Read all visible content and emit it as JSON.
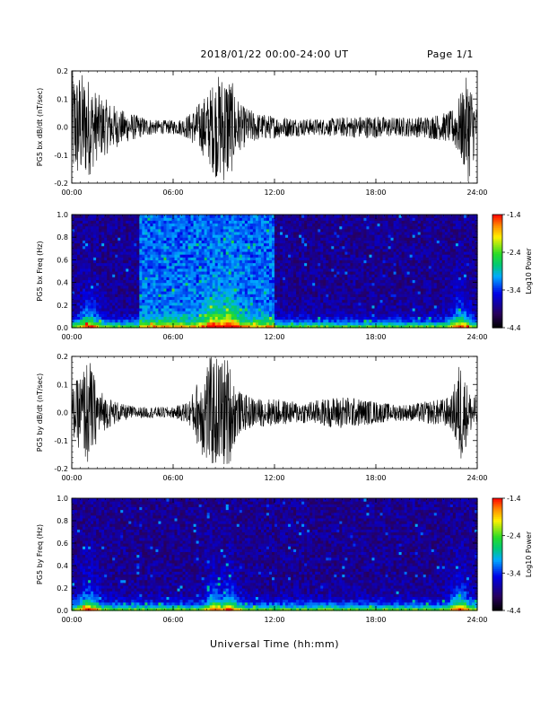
{
  "header": {
    "title": "2018/01/22  00:00-24:00 UT",
    "page": "Page 1/1"
  },
  "xaxis_title": "Universal Time (hh:mm)",
  "chart_data": [
    {
      "type": "line",
      "ylabel": "PG5 bx dB/dt (nT/sec)",
      "xlim": [
        0,
        24
      ],
      "ylim": [
        -0.2,
        0.2
      ],
      "xticks": [
        "00:00",
        "06:00",
        "12:00",
        "18:00",
        "24:00"
      ],
      "yticks": [
        "0.2",
        "0.1",
        "0.0",
        "-0.1",
        "-0.2"
      ],
      "x": [
        0,
        0.5,
        1,
        1.5,
        2,
        3,
        4,
        5,
        6,
        6.5,
        7,
        8,
        8.5,
        9,
        9.3,
        9.6,
        10,
        11,
        12,
        13,
        14,
        15,
        16,
        17,
        18,
        19,
        20,
        21,
        22,
        22.5,
        23,
        23.5,
        24
      ],
      "amplitude": [
        0.2,
        0.2,
        0.18,
        0.12,
        0.1,
        0.06,
        0.04,
        0.025,
        0.025,
        0.03,
        0.05,
        0.12,
        0.18,
        0.2,
        0.2,
        0.14,
        0.08,
        0.05,
        0.04,
        0.035,
        0.03,
        0.03,
        0.035,
        0.04,
        0.04,
        0.035,
        0.035,
        0.04,
        0.05,
        0.06,
        0.12,
        0.2,
        0.06
      ]
    },
    {
      "type": "heatmap",
      "ylabel": "PG5 bx Freq (Hz)",
      "xlim": [
        0,
        24
      ],
      "ylim": [
        0.0,
        1.0
      ],
      "xticks": [
        "00:00",
        "06:00",
        "12:00",
        "18:00",
        "24:00"
      ],
      "yticks": [
        "1.0",
        "0.8",
        "0.6",
        "0.4",
        "0.2",
        "0.0"
      ],
      "colorbar": {
        "label": "Log10 Power",
        "min": -4.4,
        "max": -1.4,
        "ticks": [
          "-1.4",
          "-2.4",
          "-3.4",
          "-4.4"
        ]
      },
      "elevated_noise_interval": [
        4.0,
        12.0
      ],
      "bright_events": [
        1.0,
        8.5,
        9.3,
        23.0
      ]
    },
    {
      "type": "line",
      "ylabel": "PG5 by dB/dt (nT/sec)",
      "xlim": [
        0,
        24
      ],
      "ylim": [
        -0.2,
        0.2
      ],
      "xticks": [
        "00:00",
        "06:00",
        "12:00",
        "18:00",
        "24:00"
      ],
      "yticks": [
        "0.2",
        "0.1",
        "0.0",
        "-0.1",
        "-0.2"
      ],
      "x": [
        0,
        0.5,
        1,
        1.5,
        2,
        3,
        4,
        5,
        6,
        6.5,
        7,
        8,
        8.5,
        9,
        9.3,
        9.6,
        10,
        11,
        12,
        13,
        14,
        15,
        16,
        17,
        18,
        19,
        20,
        21,
        22,
        22.5,
        23,
        23.5,
        24
      ],
      "amplitude": [
        0.08,
        0.14,
        0.2,
        0.1,
        0.06,
        0.03,
        0.02,
        0.02,
        0.02,
        0.03,
        0.05,
        0.2,
        0.2,
        0.2,
        0.2,
        0.12,
        0.07,
        0.05,
        0.05,
        0.04,
        0.04,
        0.05,
        0.06,
        0.05,
        0.04,
        0.03,
        0.03,
        0.04,
        0.05,
        0.06,
        0.2,
        0.08,
        0.06
      ]
    },
    {
      "type": "heatmap",
      "ylabel": "PG5 by Freq (Hz)",
      "xlim": [
        0,
        24
      ],
      "ylim": [
        0.0,
        1.0
      ],
      "xticks": [
        "00:00",
        "06:00",
        "12:00",
        "18:00",
        "24:00"
      ],
      "yticks": [
        "1.0",
        "0.8",
        "0.6",
        "0.4",
        "0.2",
        "0.0"
      ],
      "colorbar": {
        "label": "Log10 Power",
        "min": -4.4,
        "max": -1.4,
        "ticks": [
          "-1.4",
          "-2.4",
          "-3.4",
          "-4.4"
        ]
      },
      "elevated_noise_interval": [],
      "bright_events": [
        1.0,
        8.5,
        9.3,
        23.0
      ]
    }
  ]
}
